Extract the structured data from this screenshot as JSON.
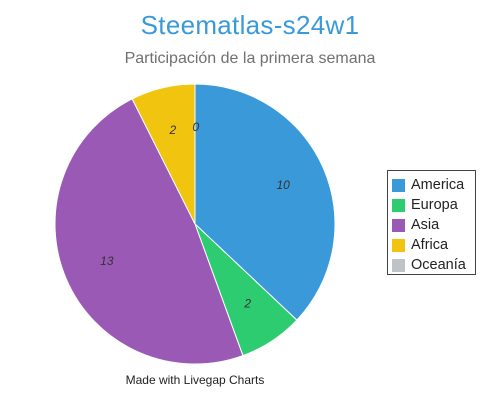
{
  "title": "Steematlas-s24w1",
  "subtitle": "Participación de la primera semana",
  "credit": "Made with Livegap Charts",
  "chart_data": {
    "type": "pie",
    "title": "Steematlas-s24w1",
    "subtitle": "Participación de la primera semana",
    "categories": [
      "America",
      "Europa",
      "Asia",
      "Africa",
      "Oceanía"
    ],
    "values": [
      10,
      2,
      13,
      2,
      0
    ],
    "colors": [
      "#3a9ad9",
      "#2ecc71",
      "#9b59b6",
      "#f1c40f",
      "#bdc3c7"
    ],
    "start_angle_deg": 0,
    "direction": "clockwise",
    "data_labels": true,
    "legend": "right"
  }
}
